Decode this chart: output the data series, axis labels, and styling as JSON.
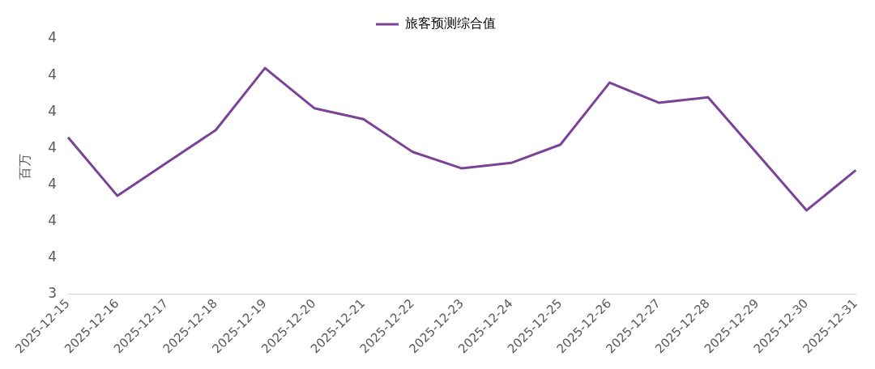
{
  "chart_data": {
    "type": "line",
    "ylabel": "百万",
    "legend": "top",
    "grid": false,
    "marker": "none",
    "categories": [
      "2025-12-15",
      "2025-12-16",
      "2025-12-17",
      "2025-12-18",
      "2025-12-19",
      "2025-12-20",
      "2025-12-21",
      "2025-12-22",
      "2025-12-23",
      "2025-12-24",
      "2025-12-25",
      "2025-12-26",
      "2025-12-27",
      "2025-12-28",
      "2025-12-29",
      "2025-12-30",
      "2025-12-31"
    ],
    "ylim": [
      3.4,
      4.1
    ],
    "yticks": [
      {
        "value": 3.4,
        "label": "3"
      },
      {
        "value": 3.5,
        "label": "4"
      },
      {
        "value": 3.6,
        "label": "4"
      },
      {
        "value": 3.7,
        "label": "4"
      },
      {
        "value": 3.8,
        "label": "4"
      },
      {
        "value": 3.9,
        "label": "4"
      },
      {
        "value": 4.0,
        "label": "4"
      },
      {
        "value": 4.1,
        "label": "4"
      }
    ],
    "series": [
      {
        "name": "旅客预测综合值",
        "color": "#7b4397",
        "values": [
          3.83,
          3.67,
          3.76,
          3.85,
          4.02,
          3.91,
          3.88,
          3.79,
          3.745,
          3.76,
          3.81,
          3.98,
          3.925,
          3.94,
          3.785,
          3.63,
          3.74
        ]
      }
    ]
  }
}
